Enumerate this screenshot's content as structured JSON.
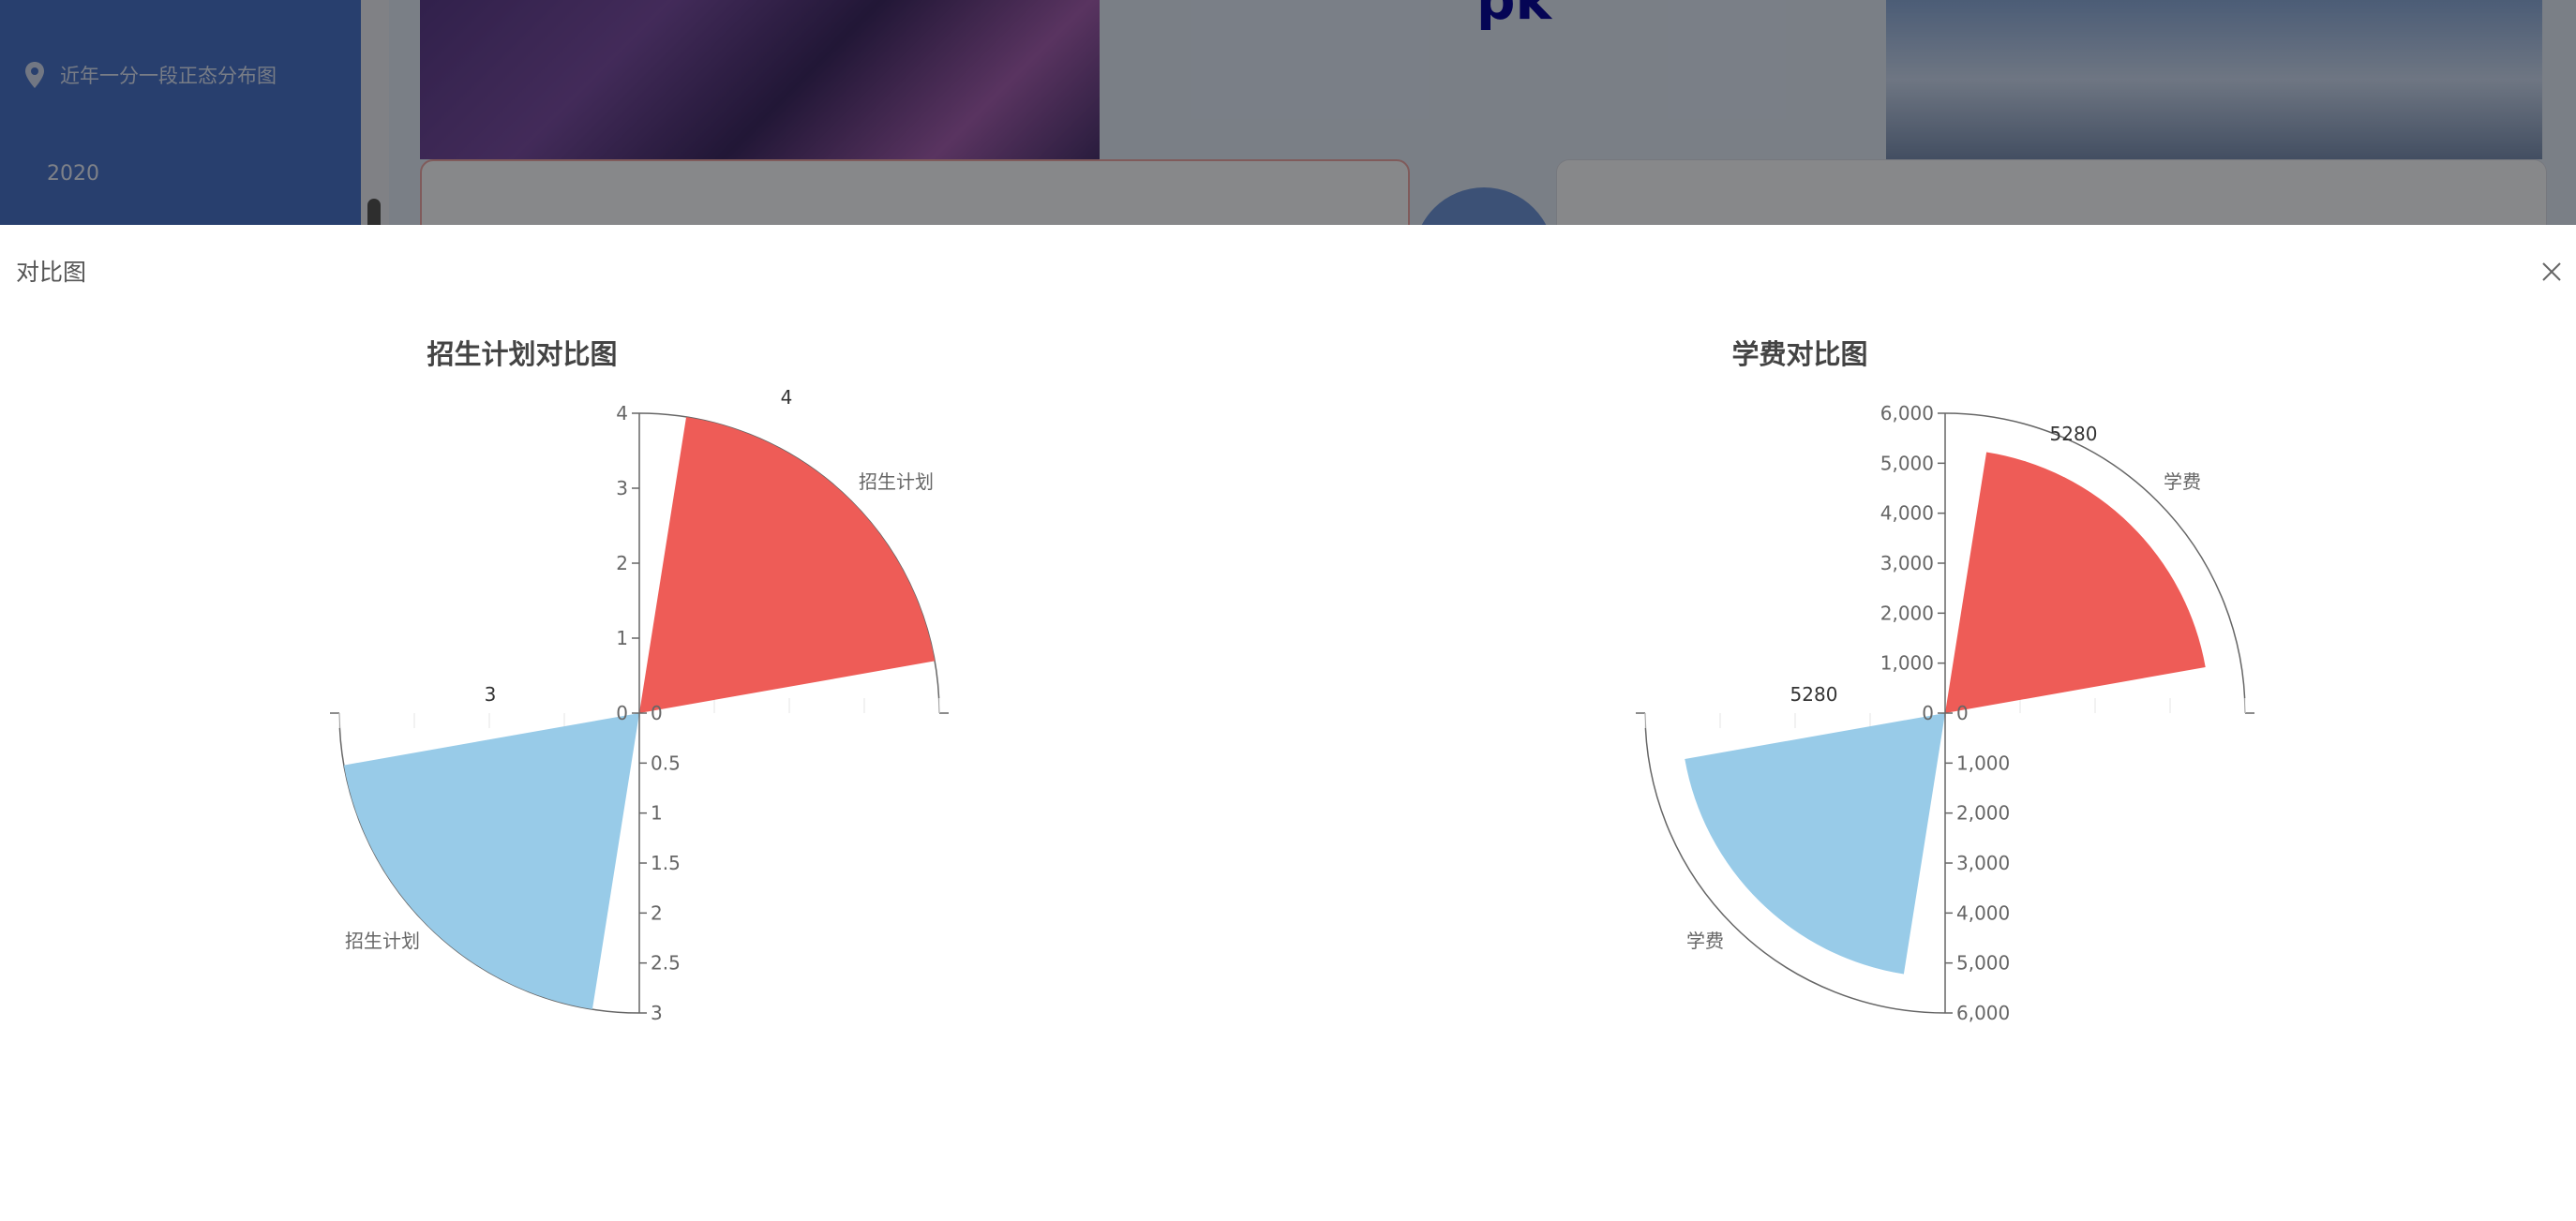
{
  "sidebar": {
    "items": [
      {
        "label": "近年一分一段正态分布图",
        "icon": "location-pin-icon"
      },
      {
        "label": "2020"
      }
    ]
  },
  "header": {
    "title": "pk"
  },
  "modal": {
    "title": "对比图",
    "close_icon": "close-icon"
  },
  "colors": {
    "series_a": "#ee5c57",
    "series_b": "#98cbe8",
    "sidebar": "#4a73c9"
  },
  "chart_data": [
    {
      "type": "polar-bar",
      "title": "招生计划对比图",
      "series_label": "招生计划",
      "values": [
        4,
        3
      ],
      "radial_axis_upper": {
        "max": 4,
        "ticks": [
          "0",
          "1",
          "2",
          "3",
          "4"
        ]
      },
      "radial_axis_lower": {
        "max": 3,
        "ticks": [
          "0",
          "0.5",
          "1",
          "1.5",
          "2",
          "2.5",
          "3"
        ]
      },
      "data_labels": [
        "4",
        "3"
      ]
    },
    {
      "type": "polar-bar",
      "title": "学费对比图",
      "series_label": "学费",
      "values": [
        5280,
        5280
      ],
      "radial_axis_upper": {
        "max": 6000,
        "ticks": [
          "0",
          "1,000",
          "2,000",
          "3,000",
          "4,000",
          "5,000",
          "6,000"
        ]
      },
      "radial_axis_lower": {
        "max": 6000,
        "ticks": [
          "0",
          "1,000",
          "2,000",
          "3,000",
          "4,000",
          "5,000",
          "6,000"
        ]
      },
      "data_labels": [
        "5280",
        "5280"
      ]
    }
  ]
}
